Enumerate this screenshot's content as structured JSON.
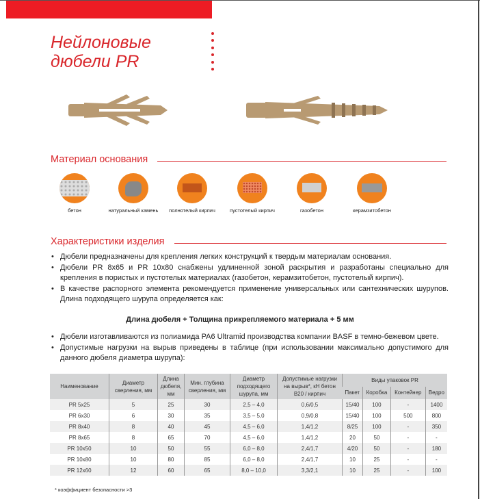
{
  "title": [
    "Нейлоновые",
    "дюбели PR"
  ],
  "section_material": "Материал основания",
  "materials": [
    {
      "label": "бетон",
      "icon": "concrete-icon"
    },
    {
      "label": "натуральный камень",
      "icon": "natural-stone-icon"
    },
    {
      "label": "полнотелый кирпич",
      "icon": "solid-brick-icon"
    },
    {
      "label": "пустотелый кирпич",
      "icon": "hollow-brick-icon"
    },
    {
      "label": "газобетон",
      "icon": "aerated-concrete-icon"
    },
    {
      "label": "керамзитобетон",
      "icon": "expanded-clay-block-icon"
    }
  ],
  "section_specs": "Характеристики изделия",
  "bullets1": [
    "Дюбели предназначены для крепления легких конструкций к твердым материалам основания.",
    "Дюбели PR 8x65 и PR 10x80 снабжены удлиненной зоной раскрытия и разработаны специально для крепления в пористых и пустотелых материалах (газобетон, керамзитобетон, пустотелый кирпич).",
    "В качестве распорного элемента рекомендуется применение универсальных или сантехнических шурупов. Длина подходящего шурупа определяется как:"
  ],
  "formula": "Длина дюбеля + Толщина прикрепляемого материала + 5 мм",
  "bullets2": [
    "Дюбели изготавливаются из полиамида PA6 Ultramid производства компании BASF в темно-бежевом цвете.",
    "Допустимые нагрузки на вырыв приведены в таблице (при использовании максимально допустимого для данного дюбеля диаметра шурупа):"
  ],
  "table": {
    "headers": [
      "Наименование",
      "Диаметр сверления, мм",
      "Длина дюбеля, мм",
      "Мин. глубина сверления, мм",
      "Диаметр подходящего шурупа, мм",
      "Допустимые нагрузки на вырыв*, кН бетон B20 / кирпич",
      "Виды упаковок PR"
    ],
    "pack_headers": [
      "Пакет",
      "Коробка",
      "Контейнер",
      "Ведро"
    ],
    "rows": [
      [
        "PR  5x25",
        "5",
        "25",
        "30",
        "2,5 – 4,0",
        "0,6/0,5",
        "15/40",
        "100",
        "-",
        "1400"
      ],
      [
        "PR  6x30",
        "6",
        "30",
        "35",
        "3,5 – 5,0",
        "0,9/0,8",
        "15/40",
        "100",
        "500",
        "800"
      ],
      [
        "PR  8x40",
        "8",
        "40",
        "45",
        "4,5 – 6,0",
        "1,4/1,2",
        "8/25",
        "100",
        "-",
        "350"
      ],
      [
        "PR  8x65",
        "8",
        "65",
        "70",
        "4,5 – 6,0",
        "1,4/1,2",
        "20",
        "50",
        "-",
        "-"
      ],
      [
        "PR 10x50",
        "10",
        "50",
        "55",
        "6,0 – 8,0",
        "2,4/1,7",
        "4/20",
        "50",
        "-",
        "180"
      ],
      [
        "PR 10x80",
        "10",
        "80",
        "85",
        "6,0 – 8,0",
        "2,4/1,7",
        "10",
        "25",
        "-",
        "-"
      ],
      [
        "PR 12x60",
        "12",
        "60",
        "65",
        "8,0 – 10,0",
        "3,3/2,1",
        "10",
        "25",
        "-",
        "100"
      ]
    ]
  },
  "footnote": "* коэффициент безопасности >3",
  "colors": {
    "accent": "#d9262b",
    "icon_circle": "#f0821e",
    "dowel": "#b89a72"
  }
}
